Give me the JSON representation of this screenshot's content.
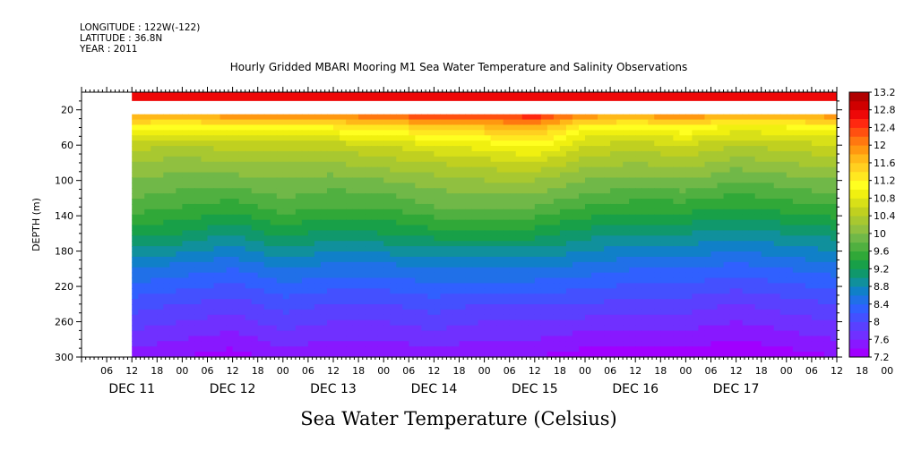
{
  "header": {
    "longitude": "LONGITUDE : 122W(-122)",
    "latitude": "LATITUDE : 36.8N",
    "year": "YEAR : 2011"
  },
  "chart_data": {
    "type": "heatmap",
    "title": "Hourly Gridded MBARI Mooring M1 Sea Water Temperature and Salinity Observations",
    "xlabel": "",
    "ylabel": "DEPTH (m)",
    "bottom_label": "Sea Water Temperature (Celsius)",
    "x_start_date": "DEC 11",
    "x_range_hours": [
      -12,
      168
    ],
    "data_x_start_hours": 0,
    "y_range": [
      0,
      300
    ],
    "y_inverted": true,
    "y_ticks": [
      20,
      60,
      100,
      140,
      180,
      220,
      260,
      300
    ],
    "x_hour_ticks": [
      {
        "h": -6,
        "label": "06"
      },
      {
        "h": 0,
        "label": "12"
      },
      {
        "h": 6,
        "label": "18"
      },
      {
        "h": 12,
        "label": "00"
      },
      {
        "h": 18,
        "label": "06"
      },
      {
        "h": 24,
        "label": "12"
      },
      {
        "h": 30,
        "label": "18"
      },
      {
        "h": 36,
        "label": "00"
      },
      {
        "h": 42,
        "label": "06"
      },
      {
        "h": 48,
        "label": "12"
      },
      {
        "h": 54,
        "label": "18"
      },
      {
        "h": 60,
        "label": "00"
      },
      {
        "h": 66,
        "label": "06"
      },
      {
        "h": 72,
        "label": "12"
      },
      {
        "h": 78,
        "label": "18"
      },
      {
        "h": 84,
        "label": "00"
      },
      {
        "h": 90,
        "label": "06"
      },
      {
        "h": 96,
        "label": "12"
      },
      {
        "h": 102,
        "label": "18"
      },
      {
        "h": 108,
        "label": "00"
      },
      {
        "h": 114,
        "label": "06"
      },
      {
        "h": 120,
        "label": "12"
      },
      {
        "h": 126,
        "label": "18"
      },
      {
        "h": 132,
        "label": "00"
      },
      {
        "h": 138,
        "label": "06"
      },
      {
        "h": 144,
        "label": "12"
      },
      {
        "h": 150,
        "label": "18"
      },
      {
        "h": 156,
        "label": "00"
      },
      {
        "h": 162,
        "label": "06"
      },
      {
        "h": 168,
        "label": "12"
      },
      {
        "h": 174,
        "label": "18"
      },
      {
        "h": 180,
        "label": "00"
      }
    ],
    "x_day_labels": [
      {
        "h": 0,
        "label": "DEC 11"
      },
      {
        "h": 24,
        "label": "DEC 12"
      },
      {
        "h": 48,
        "label": "DEC 13"
      },
      {
        "h": 72,
        "label": "DEC 14"
      },
      {
        "h": 96,
        "label": "DEC 15"
      },
      {
        "h": 120,
        "label": "DEC 16"
      },
      {
        "h": 144,
        "label": "DEC 17"
      }
    ],
    "colorbar": {
      "levels": [
        7.2,
        7.4,
        7.6,
        7.8,
        8.0,
        8.2,
        8.4,
        8.6,
        8.8,
        9.0,
        9.2,
        9.4,
        9.6,
        9.8,
        10.0,
        10.2,
        10.4,
        10.6,
        10.8,
        11.0,
        11.2,
        11.4,
        11.6,
        11.8,
        12.0,
        12.2,
        12.4,
        12.6,
        12.8,
        13.0,
        13.2
      ],
      "tick_labels": [
        "7.2",
        "7.6",
        "8",
        "8.4",
        "8.8",
        "9.2",
        "9.6",
        "10",
        "10.4",
        "10.8",
        "11.2",
        "11.6",
        "12",
        "12.4",
        "12.8",
        "13.2"
      ],
      "colors": [
        "#a000ff",
        "#8818ff",
        "#7030ff",
        "#5a40ff",
        "#4450ff",
        "#3060ff",
        "#2070e8",
        "#1080c8",
        "#10909c",
        "#10986c",
        "#18a048",
        "#30a838",
        "#50b040",
        "#70b848",
        "#90c040",
        "#a8c830",
        "#c0d020",
        "#d8e018",
        "#f0f010",
        "#ffff20",
        "#ffe820",
        "#ffd020",
        "#ffb818",
        "#ff9810",
        "#ff7810",
        "#ff5010",
        "#ff2810",
        "#ee0808",
        "#d00000",
        "#b00000"
      ]
    },
    "surface_band": {
      "depth_range": [
        0,
        10
      ],
      "temperature": 12.6
    },
    "data_gap_depth_range": [
      10,
      25
    ],
    "depths_m": [
      25,
      40,
      60,
      80,
      100,
      130,
      160,
      200,
      240,
      270,
      300
    ],
    "time_hours": [
      0,
      12,
      24,
      36,
      48,
      60,
      72,
      84,
      96,
      108,
      120,
      132,
      144,
      156,
      168
    ],
    "temperature_c": [
      [
        11.9,
        11.9,
        12.0,
        12.0,
        12.1,
        12.3,
        12.5,
        12.4,
        12.6,
        12.0,
        11.9,
        12.1,
        11.8,
        11.9,
        12.0
      ],
      [
        11.1,
        11.0,
        11.1,
        11.1,
        11.2,
        11.3,
        11.5,
        11.6,
        11.8,
        11.1,
        11.0,
        11.2,
        10.9,
        11.0,
        11.1
      ],
      [
        10.5,
        10.4,
        10.5,
        10.5,
        10.5,
        10.6,
        10.8,
        10.9,
        11.1,
        10.6,
        10.5,
        10.6,
        10.4,
        10.5,
        10.6
      ],
      [
        10.2,
        10.1,
        10.2,
        10.2,
        10.2,
        10.3,
        10.4,
        10.5,
        10.6,
        10.3,
        10.2,
        10.3,
        10.1,
        10.2,
        10.3
      ],
      [
        10.0,
        9.9,
        9.9,
        10.0,
        9.9,
        10.0,
        10.1,
        10.2,
        10.2,
        10.0,
        9.9,
        10.0,
        9.8,
        9.9,
        10.0
      ],
      [
        9.7,
        9.6,
        9.5,
        9.7,
        9.6,
        9.6,
        9.8,
        9.8,
        9.8,
        9.6,
        9.5,
        9.5,
        9.4,
        9.5,
        9.6
      ],
      [
        9.3,
        9.2,
        9.0,
        9.3,
        9.1,
        9.2,
        9.3,
        9.3,
        9.3,
        9.1,
        9.0,
        9.0,
        8.9,
        9.0,
        9.1
      ],
      [
        8.6,
        8.5,
        8.4,
        8.6,
        8.5,
        8.5,
        8.6,
        8.6,
        8.6,
        8.5,
        8.4,
        8.4,
        8.3,
        8.4,
        8.5
      ],
      [
        8.1,
        8.0,
        7.9,
        8.1,
        8.0,
        8.0,
        8.1,
        8.0,
        8.0,
        8.0,
        7.9,
        7.9,
        7.8,
        7.9,
        8.0
      ],
      [
        7.8,
        7.7,
        7.6,
        7.8,
        7.7,
        7.7,
        7.8,
        7.7,
        7.7,
        7.6,
        7.6,
        7.6,
        7.5,
        7.6,
        7.7
      ],
      [
        7.5,
        7.4,
        7.3,
        7.5,
        7.4,
        7.4,
        7.5,
        7.4,
        7.4,
        7.3,
        7.3,
        7.3,
        7.2,
        7.3,
        7.4
      ]
    ]
  }
}
